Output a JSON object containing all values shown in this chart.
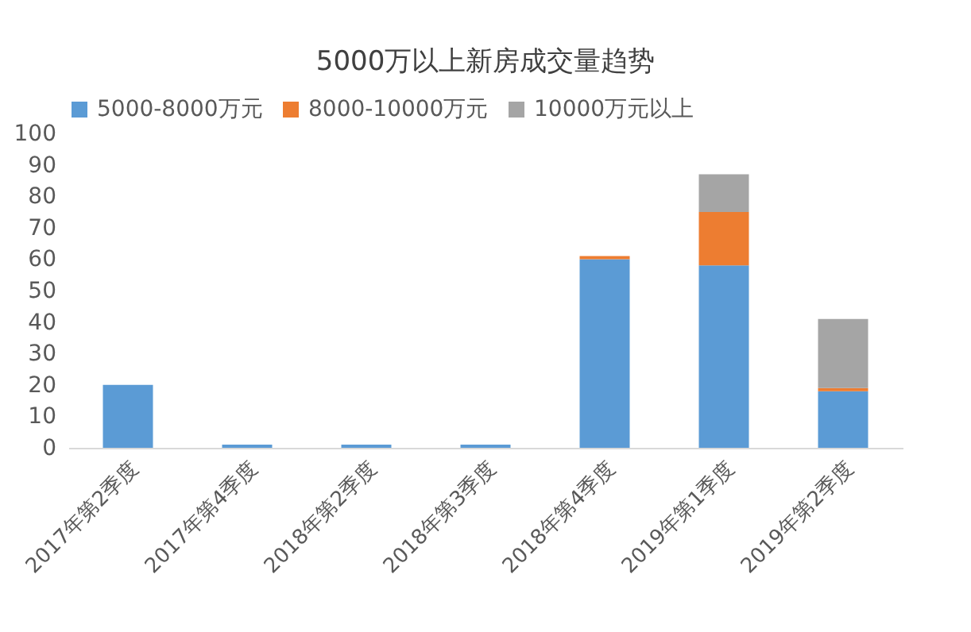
{
  "chart_data": {
    "type": "bar",
    "title": "5000万以上新房成交量趋势",
    "stacked": true,
    "legend": "top",
    "grid": false,
    "categories": [
      "2017年第2季度",
      "2017年第4季度",
      "2018年第2季度",
      "2018年第3季度",
      "2018年第4季度",
      "2019年第1季度",
      "2019年第2季度"
    ],
    "series": [
      {
        "name": "5000-8000万元",
        "color": "#5b9bd5",
        "values": [
          20,
          1,
          1,
          1,
          60,
          58,
          18
        ]
      },
      {
        "name": "8000-10000万元",
        "color": "#ed7d31",
        "values": [
          0,
          0,
          0,
          0,
          1,
          17,
          1
        ]
      },
      {
        "name": "10000万元以上",
        "color": "#a5a5a5",
        "values": [
          0,
          0,
          0,
          0,
          0,
          12,
          22
        ]
      }
    ],
    "ylim": [
      0,
      100
    ],
    "yticks": [
      0,
      10,
      20,
      30,
      40,
      50,
      60,
      70,
      80,
      90,
      100
    ]
  }
}
